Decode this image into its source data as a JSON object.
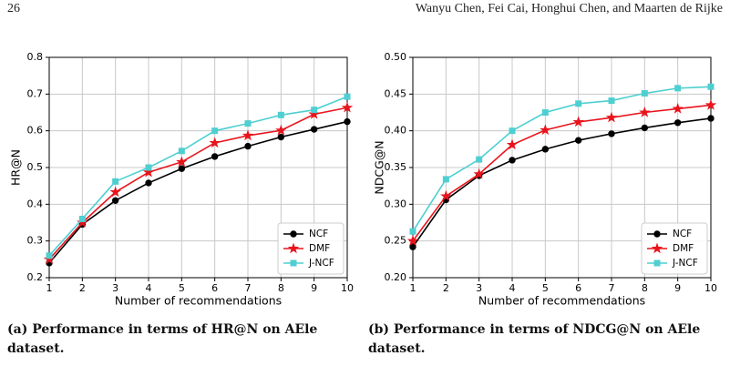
{
  "header": {
    "page_number": "26",
    "authors": "Wanyu Chen, Fei Cai, Honghui Chen, and Maarten de Rijke"
  },
  "chart_data": [
    {
      "type": "line",
      "xlabel": "Number of recommendations",
      "ylabel": "HR@N",
      "x": [
        1,
        2,
        3,
        4,
        5,
        6,
        7,
        8,
        9,
        10
      ],
      "xlim": [
        1,
        10
      ],
      "xticks": [
        1,
        2,
        3,
        4,
        5,
        6,
        7,
        8,
        9,
        10
      ],
      "ylim": [
        0.2,
        0.8
      ],
      "yticks": [
        0.2,
        0.3,
        0.4,
        0.5,
        0.6,
        0.7,
        0.8
      ],
      "grid": true,
      "legend": "lower right",
      "series": [
        {
          "name": "NCF",
          "color": "#000000",
          "marker": "circle",
          "values": [
            0.24,
            0.345,
            0.41,
            0.458,
            0.497,
            0.53,
            0.558,
            0.583,
            0.604,
            0.625
          ]
        },
        {
          "name": "DMF",
          "color": "#e8141c",
          "marker": "star",
          "values": [
            0.25,
            0.35,
            0.433,
            0.487,
            0.515,
            0.567,
            0.587,
            0.601,
            0.645,
            0.663
          ]
        },
        {
          "name": "J-NCF",
          "color": "#4fcfd1",
          "marker": "square",
          "values": [
            0.26,
            0.36,
            0.462,
            0.5,
            0.545,
            0.6,
            0.62,
            0.643,
            0.657,
            0.693
          ]
        }
      ],
      "caption": "(a) Performance in terms of HR@N on AEle dataset."
    },
    {
      "type": "line",
      "xlabel": "Number of recommendations",
      "ylabel": "NDCG@N",
      "x": [
        1,
        2,
        3,
        4,
        5,
        6,
        7,
        8,
        9,
        10
      ],
      "xlim": [
        1,
        10
      ],
      "xticks": [
        1,
        2,
        3,
        4,
        5,
        6,
        7,
        8,
        9,
        10
      ],
      "ylim": [
        0.2,
        0.5
      ],
      "yticks": [
        {
          "value": 0.2,
          "label": "0.20"
        },
        0.25,
        {
          "value": 0.3,
          "label": "0.30"
        },
        0.35,
        {
          "value": 0.4,
          "label": "0.40"
        },
        0.45,
        {
          "value": 0.5,
          "label": "0.50"
        }
      ],
      "grid": true,
      "legend": "lower right",
      "series": [
        {
          "name": "NCF",
          "color": "#000000",
          "marker": "circle",
          "values": [
            0.242,
            0.306,
            0.339,
            0.36,
            0.375,
            0.387,
            0.396,
            0.404,
            0.411,
            0.417
          ]
        },
        {
          "name": "DMF",
          "color": "#e8141c",
          "marker": "star",
          "values": [
            0.25,
            0.311,
            0.341,
            0.381,
            0.401,
            0.412,
            0.418,
            0.425,
            0.43,
            0.435
          ]
        },
        {
          "name": "J-NCF",
          "color": "#4fcfd1",
          "marker": "square",
          "values": [
            0.263,
            0.334,
            0.361,
            0.4,
            0.425,
            0.437,
            0.441,
            0.451,
            0.458,
            0.46
          ]
        }
      ],
      "caption": "(b) Performance in terms of NDCG@N on AEle dataset."
    }
  ]
}
